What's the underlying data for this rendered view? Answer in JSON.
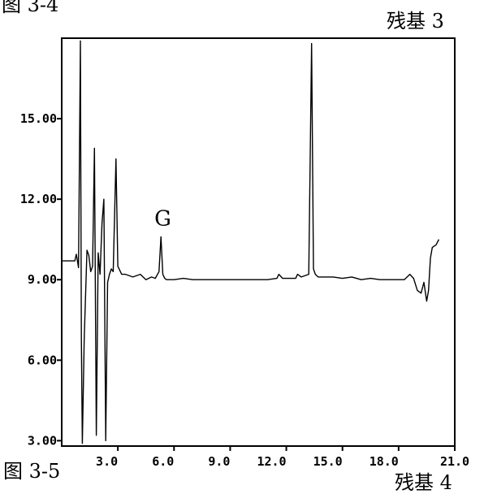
{
  "captions": {
    "top_left": "图 3-4",
    "top_right": "残基 3",
    "bottom_left": "图 3-5",
    "bottom_right": "残基 4"
  },
  "chart_data": {
    "type": "line",
    "title": "",
    "xlabel": "",
    "ylabel": "",
    "xlim": [
      0,
      21.0
    ],
    "ylim": [
      2.8,
      18.0
    ],
    "x_ticks": [
      "3.0",
      "6.0",
      "9.0",
      "12.0",
      "15.0",
      "18.0",
      "21.0"
    ],
    "y_ticks": [
      "3.00",
      "6.00",
      "9.00",
      "12.00",
      "15.00"
    ],
    "grid": false,
    "annotations": [
      {
        "text": "G",
        "x": 5.4,
        "y": 10.6
      }
    ],
    "series": [
      {
        "x": [
          0.0,
          0.7,
          0.78,
          0.9,
          1.0,
          1.05,
          1.1,
          1.2,
          1.35,
          1.45,
          1.55,
          1.65,
          1.75,
          1.85,
          1.95,
          2.05,
          2.15,
          2.25,
          2.35,
          2.45,
          2.55,
          2.65,
          2.75,
          2.9,
          3.0,
          3.2,
          3.4,
          3.8,
          4.2,
          4.5,
          4.8,
          5.0,
          5.2,
          5.3,
          5.4,
          5.5,
          5.6,
          6.0,
          6.5,
          7.0,
          7.5,
          8.0,
          9.0,
          10.0,
          11.0,
          11.5,
          11.6,
          11.8,
          12.5,
          12.6,
          12.8,
          13.2,
          13.35,
          13.45,
          13.55,
          13.7,
          14.0,
          14.5,
          15.0,
          15.5,
          16.0,
          16.5,
          17.0,
          17.5,
          18.0,
          18.3,
          18.6,
          18.8,
          19.0,
          19.2,
          19.35,
          19.5,
          19.6,
          19.7,
          19.8,
          20.0,
          20.15
        ],
        "y": [
          9.7,
          9.7,
          9.95,
          9.45,
          17.9,
          6.8,
          2.9,
          6.8,
          10.1,
          9.9,
          9.3,
          9.5,
          13.9,
          3.2,
          10.0,
          9.2,
          11.1,
          12.0,
          3.0,
          8.9,
          9.2,
          9.4,
          9.3,
          13.5,
          9.5,
          9.2,
          9.2,
          9.1,
          9.2,
          9.0,
          9.1,
          9.05,
          9.3,
          10.6,
          9.2,
          9.05,
          9.0,
          9.0,
          9.05,
          9.0,
          9.0,
          9.0,
          9.0,
          9.0,
          9.0,
          9.05,
          9.2,
          9.05,
          9.05,
          9.2,
          9.1,
          9.2,
          17.8,
          9.4,
          9.2,
          9.1,
          9.1,
          9.1,
          9.05,
          9.1,
          9.0,
          9.05,
          9.0,
          9.0,
          9.0,
          9.0,
          9.2,
          9.05,
          8.6,
          8.5,
          8.9,
          8.2,
          8.6,
          9.8,
          10.2,
          10.3,
          10.5
        ]
      }
    ]
  }
}
